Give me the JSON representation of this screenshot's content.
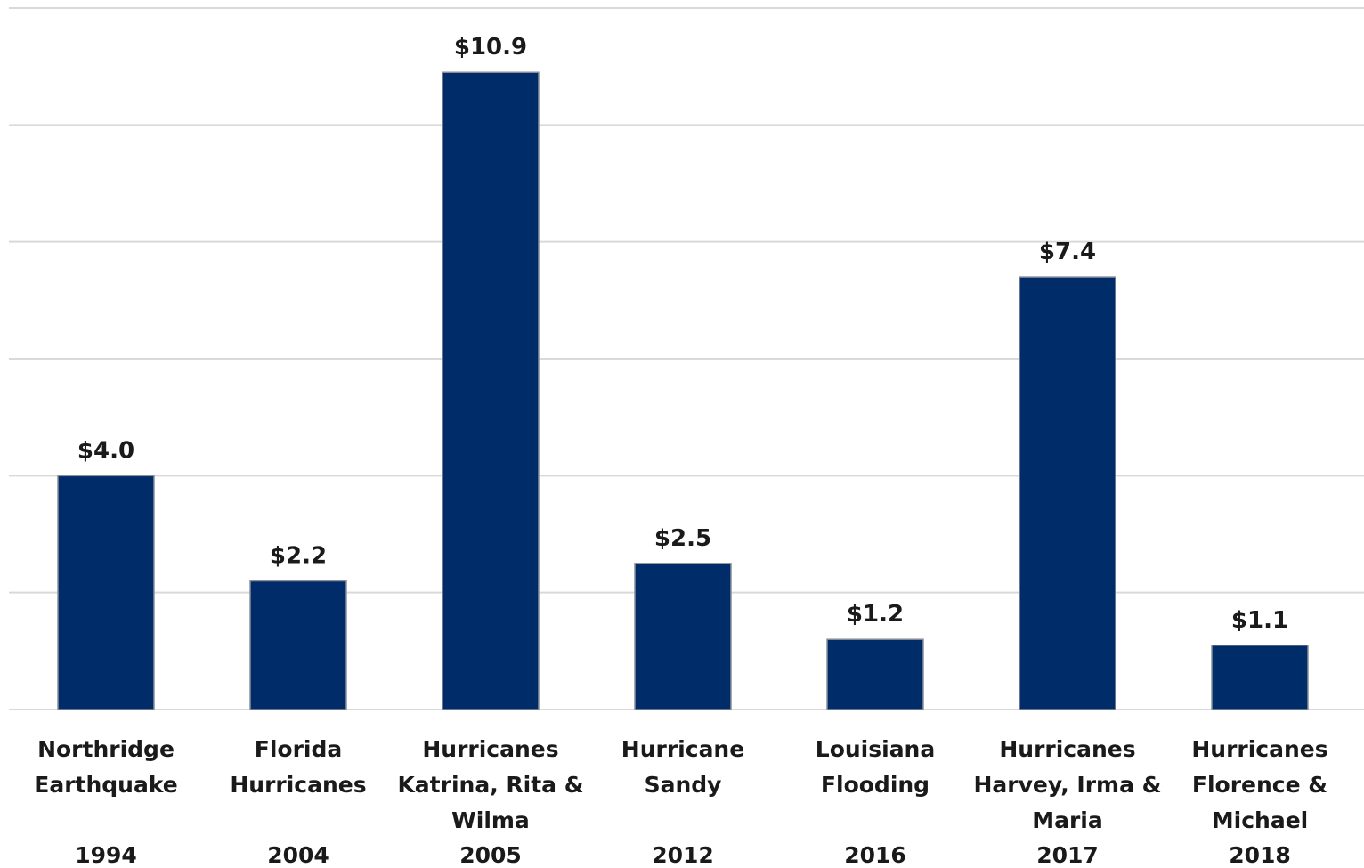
{
  "chart_data": {
    "type": "bar",
    "title": "",
    "xlabel": "",
    "ylabel": "",
    "ylim": [
      0,
      12
    ],
    "grid": true,
    "legend": "none",
    "bar_color": "#002d6a",
    "grid_color": "#d9d9d9",
    "categories": [
      {
        "name_lines": [
          "Northridge",
          "Earthquake"
        ],
        "year": "1994"
      },
      {
        "name_lines": [
          "Florida",
          "Hurricanes"
        ],
        "year": "2004"
      },
      {
        "name_lines": [
          "Hurricanes",
          "Katrina, Rita &",
          "Wilma"
        ],
        "year": "2005"
      },
      {
        "name_lines": [
          "Hurricane",
          "Sandy"
        ],
        "year": "2012"
      },
      {
        "name_lines": [
          "Louisiana",
          "Flooding"
        ],
        "year": "2016"
      },
      {
        "name_lines": [
          "Hurricanes",
          "Harvey, Irma &",
          "Maria"
        ],
        "year": "2017"
      },
      {
        "name_lines": [
          "Hurricanes",
          "Florence &",
          "Michael"
        ],
        "year": "2018"
      }
    ],
    "values": [
      4.0,
      2.2,
      10.9,
      2.5,
      1.2,
      7.4,
      1.1
    ],
    "value_labels": [
      "$4.0",
      "$2.2",
      "$10.9",
      "$2.5",
      "$1.2",
      "$7.4",
      "$1.1"
    ]
  }
}
